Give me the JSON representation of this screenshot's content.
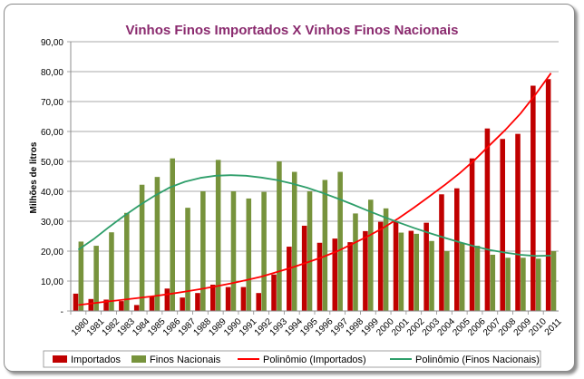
{
  "chart_data": {
    "type": "bar",
    "title": "Vinhos Finos Importados X Vinhos Finos Nacionais",
    "ylabel": "Milhões de litros",
    "xlabel": "",
    "ylim": [
      0,
      90
    ],
    "y_ticks": [
      "-",
      "10,00",
      "20,00",
      "30,00",
      "40,00",
      "50,00",
      "60,00",
      "70,00",
      "80,00",
      "90,00"
    ],
    "grid": true,
    "legend_position": "bottom",
    "categories": [
      "1980",
      "1981",
      "1982",
      "1983",
      "1984",
      "1985",
      "1986",
      "1987",
      "1988",
      "1989",
      "1990",
      "1991",
      "1992",
      "1993",
      "1994",
      "1995",
      "1996",
      "1997",
      "1998",
      "1999",
      "2000",
      "2001",
      "2002",
      "2003",
      "2004",
      "2005",
      "2006",
      "2007",
      "2008",
      "2009",
      "2010",
      "2011"
    ],
    "series": [
      {
        "name": "Importados",
        "type": "bar",
        "color": "#c00000",
        "values": [
          5.8,
          4.0,
          3.8,
          3.3,
          2.0,
          5.0,
          7.5,
          4.5,
          6.0,
          8.8,
          8.0,
          8.0,
          6.0,
          12.2,
          21.5,
          28.5,
          22.8,
          24.2,
          23.0,
          26.7,
          29.8,
          30.0,
          26.8,
          29.5,
          39.0,
          41.0,
          51.0,
          61.0,
          57.5,
          59.2,
          75.3,
          77.5
        ]
      },
      {
        "name": "Finos Nacionais",
        "type": "bar",
        "color": "#77933c",
        "values": [
          23.2,
          21.8,
          26.3,
          32.8,
          42.2,
          44.8,
          51.0,
          34.5,
          40.0,
          50.5,
          40.0,
          37.6,
          39.8,
          50.0,
          46.5,
          40.0,
          43.8,
          46.5,
          32.6,
          37.2,
          34.3,
          26.2,
          25.8,
          23.4,
          20.0,
          22.8,
          21.8,
          18.8,
          17.8,
          17.8,
          17.5,
          20.0
        ]
      },
      {
        "name": "Polinômio (Importados)",
        "type": "line",
        "color": "#ff0000",
        "values": [
          2.0,
          2.6,
          3.2,
          3.8,
          4.4,
          5.0,
          5.7,
          6.5,
          7.3,
          8.2,
          9.2,
          10.3,
          11.5,
          13.0,
          14.5,
          16.2,
          18.0,
          20.0,
          22.5,
          25.0,
          27.8,
          31.0,
          34.5,
          38.2,
          42.0,
          46.0,
          50.5,
          55.5,
          60.5,
          66.0,
          72.5,
          79.5
        ]
      },
      {
        "name": "Polinômio (Finos Nacionais)",
        "type": "line",
        "color": "#2e9e6a",
        "values": [
          20.5,
          24.0,
          28.0,
          31.8,
          35.3,
          38.5,
          41.3,
          43.2,
          44.5,
          45.2,
          45.4,
          45.2,
          44.6,
          43.8,
          42.6,
          41.2,
          39.5,
          37.6,
          35.6,
          33.5,
          31.5,
          29.6,
          27.8,
          26.1,
          24.5,
          23.0,
          21.6,
          20.4,
          19.5,
          18.8,
          18.4,
          18.5
        ]
      }
    ]
  }
}
